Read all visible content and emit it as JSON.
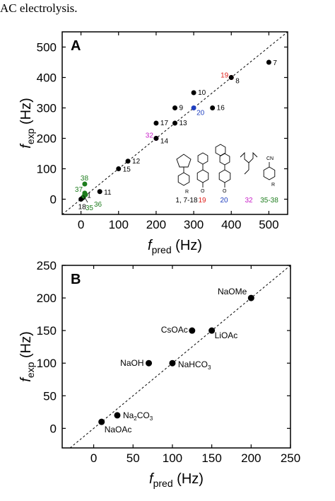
{
  "caption": "AC electrolysis.",
  "chart_data": [
    {
      "type": "scatter",
      "panel_label": "A",
      "xlabel": "f",
      "xlabel_sub": "pred",
      "xlabel_unit": " (Hz)",
      "ylabel": "f",
      "ylabel_sub": "exp",
      "ylabel_unit": " (Hz)",
      "xlim": [
        -50,
        550
      ],
      "ylim": [
        -50,
        550
      ],
      "xticks": [
        0,
        100,
        200,
        300,
        400,
        500
      ],
      "yticks": [
        0,
        100,
        200,
        300,
        400,
        500
      ],
      "diagonal": true,
      "points": [
        {
          "label": "7",
          "x": 500,
          "y": 450,
          "color": "#000000"
        },
        {
          "label": "19",
          "x": 400,
          "y": 400,
          "color": "#e0201c"
        },
        {
          "label": "8",
          "x": 400,
          "y": 400,
          "color": "#000000"
        },
        {
          "label": "10",
          "x": 300,
          "y": 350,
          "color": "#000000"
        },
        {
          "label": "9",
          "x": 250,
          "y": 300,
          "color": "#000000"
        },
        {
          "label": "20",
          "x": 300,
          "y": 300,
          "color": "#1f3fbf"
        },
        {
          "label": "16",
          "x": 350,
          "y": 300,
          "color": "#000000"
        },
        {
          "label": "17",
          "x": 200,
          "y": 250,
          "color": "#000000"
        },
        {
          "label": "13",
          "x": 250,
          "y": 250,
          "color": "#000000"
        },
        {
          "label": "32",
          "x": 200,
          "y": 200,
          "color": "#c81fc8"
        },
        {
          "label": "14",
          "x": 200,
          "y": 200,
          "color": "#000000"
        },
        {
          "label": "12",
          "x": 125,
          "y": 125,
          "color": "#000000"
        },
        {
          "label": "15",
          "x": 100,
          "y": 100,
          "color": "#000000"
        },
        {
          "label": "11",
          "x": 50,
          "y": 25,
          "color": "#000000"
        },
        {
          "label": "1",
          "x": 5,
          "y": 5,
          "color": "#000000"
        },
        {
          "label": "18",
          "x": 0,
          "y": 0,
          "color": "#000000"
        },
        {
          "label": "38",
          "x": 10,
          "y": 50,
          "color": "#1e7d1e"
        },
        {
          "label": "37",
          "x": 10,
          "y": 20,
          "color": "#1e7d1e"
        },
        {
          "label": "35",
          "x": 8,
          "y": 10,
          "color": "#1e7d1e"
        },
        {
          "label": "36",
          "x": 12,
          "y": 15,
          "color": "#1e7d1e"
        }
      ],
      "legend_groups": [
        {
          "text": "1, 7-18",
          "color": "#000000"
        },
        {
          "text": "19",
          "color": "#e0201c"
        },
        {
          "text": "20",
          "color": "#1f3fbf"
        },
        {
          "text": "32",
          "color": "#c81fc8"
        },
        {
          "text": "35-38",
          "color": "#1e7d1e"
        }
      ],
      "structure_labels": {
        "r": "R",
        "cn": "CN",
        "ome": "O"
      }
    },
    {
      "type": "scatter",
      "panel_label": "B",
      "xlabel": "f",
      "xlabel_sub": "pred",
      "xlabel_unit": " (Hz)",
      "ylabel": "f",
      "ylabel_sub": "exp",
      "ylabel_unit": " (Hz)",
      "xlim": [
        -40,
        250
      ],
      "ylim": [
        -30,
        250
      ],
      "xticks": [
        0,
        50,
        100,
        150,
        200,
        250
      ],
      "yticks": [
        0,
        50,
        100,
        150,
        200,
        250
      ],
      "diagonal": true,
      "points": [
        {
          "label": "NaOMe",
          "x": 200,
          "y": 200,
          "color": "#000000"
        },
        {
          "label": "CsOAc",
          "x": 125,
          "y": 150,
          "color": "#000000"
        },
        {
          "label": "LiOAc",
          "x": 150,
          "y": 150,
          "color": "#000000"
        },
        {
          "label": "NaOH",
          "x": 70,
          "y": 100,
          "color": "#000000"
        },
        {
          "label": "NaHCO",
          "sub": "3",
          "x": 100,
          "y": 100,
          "color": "#000000"
        },
        {
          "label": "Na",
          "sub": "2",
          "label_suffix": "CO",
          "sub2": "3",
          "x": 30,
          "y": 20,
          "color": "#000000"
        },
        {
          "label": "NaOAc",
          "x": 10,
          "y": 10,
          "color": "#000000"
        }
      ]
    }
  ]
}
